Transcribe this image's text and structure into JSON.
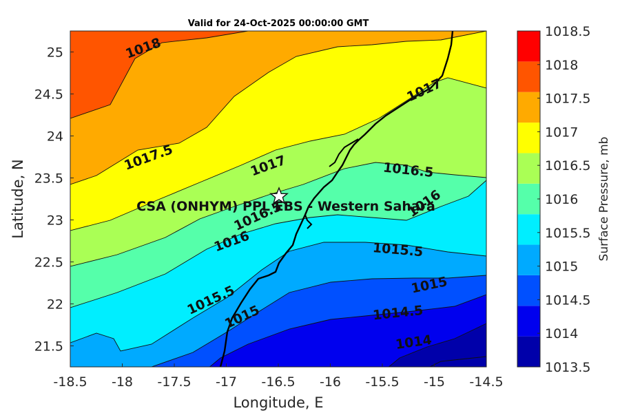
{
  "title": "Valid for 24-Oct-2025 00:00:00 GMT",
  "station_label": "CSA (ONHYM) PPL EBS - Western Sahara",
  "chart_data": {
    "type": "contour",
    "xlabel": "Longitude, E",
    "ylabel": "Latitude, N",
    "xlim": [
      -18.5,
      -14.5
    ],
    "ylim": [
      21.25,
      25.25
    ],
    "x_ticks": [
      "-18.5",
      "-18",
      "-17.5",
      "-17",
      "-16.5",
      "-16",
      "-15.5",
      "-15",
      "-14.5"
    ],
    "y_ticks": [
      "21.5",
      "22",
      "22.5",
      "23",
      "23.5",
      "24",
      "24.5",
      "25"
    ],
    "colorbar": {
      "label": "Surface Pressure, mb",
      "ticks": [
        "1013.5",
        "1014",
        "1014.5",
        "1015",
        "1015.5",
        "1016",
        "1016.5",
        "1017",
        "1017.5",
        "1018",
        "1018.5"
      ],
      "colors": [
        "#0000aa",
        "#0000ee",
        "#0050ff",
        "#00aaff",
        "#00eeff",
        "#55ffaa",
        "#aaff55",
        "#ffff00",
        "#ffaa00",
        "#ff5500",
        "#ff0000"
      ]
    },
    "contour_labels": [
      {
        "text": "1018",
        "lon": -17.8,
        "lat": 25.05
      },
      {
        "text": "1017.5",
        "lon": -17.75,
        "lat": 23.75
      },
      {
        "text": "1017",
        "lon": -16.6,
        "lat": 23.65
      },
      {
        "text": "1017",
        "lon": -15.1,
        "lat": 24.55
      },
      {
        "text": "1016.5",
        "lon": -15.25,
        "lat": 23.6
      },
      {
        "text": "1016.5",
        "lon": -16.7,
        "lat": 23.05
      },
      {
        "text": "1016",
        "lon": -16.95,
        "lat": 22.75
      },
      {
        "text": "1016",
        "lon": -15.1,
        "lat": 23.2
      },
      {
        "text": "1015.5",
        "lon": -15.35,
        "lat": 22.65
      },
      {
        "text": "1015.5",
        "lon": -17.15,
        "lat": 22.05
      },
      {
        "text": "1015",
        "lon": -16.85,
        "lat": 21.85
      },
      {
        "text": "1015",
        "lon": -15.05,
        "lat": 22.23
      },
      {
        "text": "1014.5",
        "lon": -15.35,
        "lat": 21.9
      },
      {
        "text": "1014",
        "lon": -15.2,
        "lat": 21.55
      }
    ],
    "station": {
      "lon": -16.5,
      "lat": 23.3
    }
  }
}
